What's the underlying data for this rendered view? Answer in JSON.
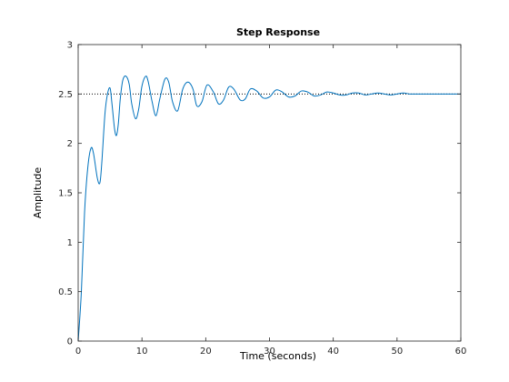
{
  "chart_data": {
    "type": "line",
    "title": "Step Response",
    "xlabel": "Time (seconds)",
    "ylabel": "Amplitude",
    "xlim": [
      0,
      60
    ],
    "ylim": [
      0,
      3
    ],
    "xticks": [
      "0",
      "10",
      "20",
      "30",
      "40",
      "50",
      "60"
    ],
    "yticks": [
      "0",
      "0.5",
      "1",
      "1.5",
      "2",
      "2.5",
      "3"
    ],
    "grid": false,
    "steady_state": 2.5,
    "colors": {
      "response": "#0072BD",
      "steady_state_line": "#000000",
      "axes": "#262626"
    },
    "series": [
      {
        "x": [
          0,
          0.5,
          1.0,
          1.5,
          2.0,
          2.4,
          3.0,
          3.4,
          3.7,
          4.2,
          4.6,
          5.0,
          5.3,
          5.7,
          6.0,
          6.3,
          6.6,
          7.0,
          7.5,
          8.0,
          8.4,
          9.0,
          9.5,
          10.0,
          10.6,
          11.0,
          11.6,
          12.2,
          12.8,
          13.6,
          14.2,
          14.8,
          15.6,
          16.4,
          17.2,
          18.0,
          18.6,
          19.4,
          20.2,
          21.2,
          22.0,
          22.8,
          23.6,
          24.4,
          25.4,
          26.2,
          27.0,
          28.0,
          29.0,
          30.0,
          31.0,
          32.0,
          33.0,
          34.0,
          35.0,
          36.0,
          37.0,
          38.0,
          39.0,
          40.0,
          41.0,
          42.0,
          43.0,
          44.0,
          45.0,
          46.0,
          47.0,
          48.0,
          49.0,
          50.0,
          51.0,
          52.0,
          53.0,
          54.0,
          55.0,
          56.0,
          58.0,
          60.0
        ],
        "y": [
          0,
          0.5,
          1.3,
          1.75,
          1.95,
          1.9,
          1.65,
          1.6,
          1.8,
          2.3,
          2.5,
          2.56,
          2.4,
          2.15,
          2.08,
          2.2,
          2.45,
          2.64,
          2.68,
          2.6,
          2.4,
          2.25,
          2.35,
          2.58,
          2.68,
          2.62,
          2.42,
          2.28,
          2.45,
          2.65,
          2.62,
          2.42,
          2.33,
          2.55,
          2.62,
          2.55,
          2.38,
          2.42,
          2.59,
          2.52,
          2.4,
          2.44,
          2.57,
          2.55,
          2.44,
          2.45,
          2.55,
          2.53,
          2.46,
          2.47,
          2.54,
          2.52,
          2.47,
          2.48,
          2.53,
          2.52,
          2.48,
          2.49,
          2.52,
          2.51,
          2.49,
          2.49,
          2.51,
          2.51,
          2.49,
          2.5,
          2.51,
          2.5,
          2.49,
          2.5,
          2.51,
          2.5,
          2.5,
          2.5,
          2.5,
          2.5,
          2.5,
          2.5
        ]
      }
    ]
  }
}
